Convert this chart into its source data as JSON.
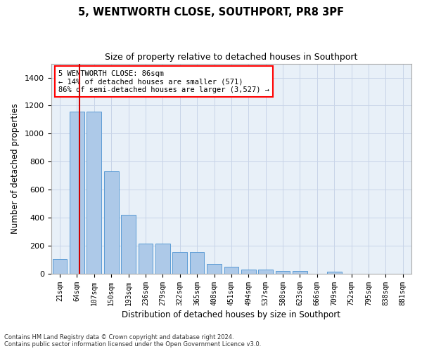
{
  "title1": "5, WENTWORTH CLOSE, SOUTHPORT, PR8 3PF",
  "title2": "Size of property relative to detached houses in Southport",
  "xlabel": "Distribution of detached houses by size in Southport",
  "ylabel": "Number of detached properties",
  "footnote1": "Contains HM Land Registry data © Crown copyright and database right 2024.",
  "footnote2": "Contains public sector information licensed under the Open Government Licence v3.0.",
  "annotation_line1": "5 WENTWORTH CLOSE: 86sqm",
  "annotation_line2": "← 14% of detached houses are smaller (571)",
  "annotation_line3": "86% of semi-detached houses are larger (3,527) →",
  "bar_color": "#adc9e8",
  "bar_edge_color": "#5b9bd5",
  "highlight_color": "#cc0000",
  "background_color": "#ffffff",
  "axes_bg_color": "#e8f0f8",
  "grid_color": "#c8d4e8",
  "categories": [
    "21sqm",
    "64sqm",
    "107sqm",
    "150sqm",
    "193sqm",
    "236sqm",
    "279sqm",
    "322sqm",
    "365sqm",
    "408sqm",
    "451sqm",
    "494sqm",
    "537sqm",
    "580sqm",
    "623sqm",
    "666sqm",
    "709sqm",
    "752sqm",
    "795sqm",
    "838sqm",
    "881sqm"
  ],
  "values": [
    105,
    1155,
    1155,
    730,
    420,
    215,
    215,
    155,
    155,
    70,
    50,
    30,
    30,
    18,
    18,
    0,
    15,
    0,
    0,
    0,
    0
  ],
  "ylim": [
    0,
    1500
  ],
  "yticks": [
    0,
    200,
    400,
    600,
    800,
    1000,
    1200,
    1400
  ],
  "red_line_x": 1.15,
  "figsize": [
    6.0,
    5.0
  ],
  "dpi": 100
}
